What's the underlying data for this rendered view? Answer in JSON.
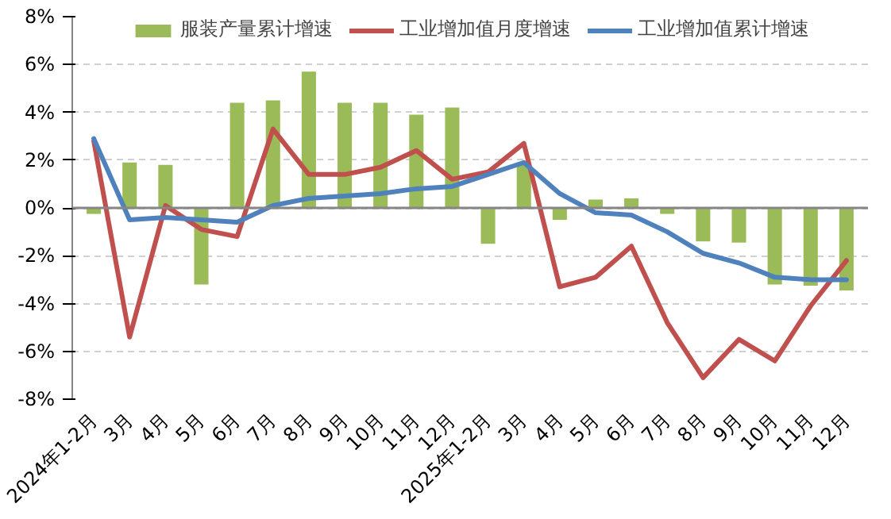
{
  "chart_data": {
    "type": "bar",
    "categories": [
      "2024年1-2月",
      "3月",
      "4月",
      "5月",
      "6月",
      "7月",
      "8月",
      "9月",
      "10月",
      "11月",
      "12月",
      "2025年1-2月",
      "3月",
      "4月",
      "5月",
      "6月",
      "7月",
      "8月",
      "9月",
      "10月",
      "11月",
      "12月"
    ],
    "series": [
      {
        "name": "服装产量累计增速",
        "color": "#9bbb59",
        "values": [
          -0.25,
          1.9,
          1.8,
          -3.2,
          4.4,
          4.5,
          5.7,
          4.4,
          4.4,
          3.9,
          4.2,
          -1.5,
          1.8,
          -0.5,
          0.35,
          0.4,
          -0.25,
          -1.4,
          -1.45,
          -3.2,
          -3.25,
          -3.45
        ]
      },
      {
        "name": "工业增加值月度增速",
        "type": "line",
        "color": "#c0504d",
        "values": [
          2.8,
          -5.4,
          0.1,
          -0.9,
          -1.2,
          3.3,
          1.4,
          1.4,
          1.7,
          2.4,
          1.2,
          1.5,
          2.7,
          -3.3,
          -2.9,
          -1.6,
          -4.8,
          -7.1,
          -5.5,
          -6.4,
          -4.1,
          -2.2
        ]
      },
      {
        "name": "工业增加值累计增速",
        "type": "line",
        "color": "#4f81bd",
        "values": [
          2.9,
          -0.5,
          -0.4,
          -0.5,
          -0.6,
          0.1,
          0.4,
          0.5,
          0.6,
          0.8,
          0.9,
          1.4,
          1.9,
          0.6,
          -0.2,
          -0.3,
          -1.0,
          -1.9,
          -2.3,
          -2.9,
          -3.0,
          -3.0
        ]
      }
    ],
    "ylim": [
      -8,
      8
    ],
    "yticks": [
      {
        "value": -8,
        "label": "-8%"
      },
      {
        "value": -6,
        "label": "-6%"
      },
      {
        "value": -4,
        "label": "-4%"
      },
      {
        "value": -2,
        "label": "-2%"
      },
      {
        "value": 0,
        "label": "0%"
      },
      {
        "value": 2,
        "label": "2%"
      },
      {
        "value": 4,
        "label": "4%"
      },
      {
        "value": 6,
        "label": "6%"
      },
      {
        "value": 8,
        "label": "8%"
      }
    ],
    "grid": "y",
    "legend": "top",
    "line_style": "solid",
    "marker": "none"
  }
}
